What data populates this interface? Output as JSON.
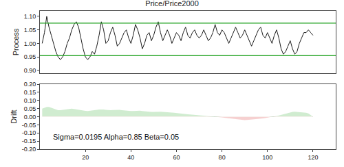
{
  "chart_data": [
    {
      "type": "line",
      "title": "Price/Price2000",
      "ylabel": "Process",
      "tick_labels": "y",
      "x": [
        1,
        2,
        3,
        4,
        5,
        6,
        7,
        8,
        9,
        10,
        11,
        12,
        13,
        14,
        15,
        16,
        17,
        18,
        19,
        20,
        21,
        22,
        23,
        24,
        25,
        26,
        27,
        28,
        29,
        30,
        31,
        32,
        33,
        34,
        35,
        36,
        37,
        38,
        39,
        40,
        41,
        42,
        43,
        44,
        45,
        46,
        47,
        48,
        49,
        50,
        51,
        52,
        53,
        54,
        55,
        56,
        57,
        58,
        59,
        60,
        61,
        62,
        63,
        64,
        65,
        66,
        67,
        68,
        69,
        70,
        71,
        72,
        73,
        74,
        75,
        76,
        77,
        78,
        79,
        80,
        81,
        82,
        83,
        84,
        85,
        86,
        87,
        88,
        89,
        90,
        91,
        92,
        93,
        94,
        95,
        96,
        97,
        98,
        99,
        100,
        101,
        102,
        103,
        104,
        105,
        106,
        107,
        108,
        109,
        110,
        111,
        112,
        113,
        114,
        115,
        116,
        117,
        118,
        119,
        120
      ],
      "xlim": [
        0,
        130
      ],
      "ylim": [
        0.89,
        1.12
      ],
      "yticks": [
        {
          "value": 0.9,
          "label": "0.90"
        },
        {
          "value": 0.95,
          "label": "0.95"
        },
        {
          "value": 1.0,
          "label": "1.00"
        },
        {
          "value": 1.05,
          "label": "1.05"
        },
        {
          "value": 1.1,
          "label": "1.10"
        }
      ],
      "series": [
        {
          "color": "#1a1a1a",
          "values": [
            1.0,
            1.04,
            1.1,
            1.06,
            1.03,
            1.0,
            0.97,
            0.95,
            0.94,
            0.95,
            0.97,
            1.0,
            1.02,
            1.05,
            1.07,
            1.08,
            1.06,
            1.02,
            0.98,
            0.95,
            0.94,
            0.95,
            0.97,
            0.96,
            0.99,
            1.03,
            1.08,
            1.05,
            1.0,
            1.01,
            1.04,
            1.06,
            1.03,
            0.99,
            1.0,
            1.02,
            1.04,
            1.05,
            1.02,
            1.0,
            1.03,
            1.07,
            1.05,
            1.02,
            0.98,
            1.0,
            1.03,
            1.04,
            1.01,
            1.03,
            1.06,
            1.08,
            1.04,
            1.01,
            1.03,
            1.05,
            1.03,
            1.0,
            1.02,
            1.04,
            1.03,
            1.01,
            1.04,
            1.06,
            1.03,
            1.02,
            1.04,
            1.05,
            1.03,
            1.02,
            1.03,
            1.05,
            1.03,
            1.01,
            1.02,
            1.04,
            1.07,
            1.04,
            1.03,
            1.05,
            1.04,
            1.02,
            1.0,
            1.02,
            1.04,
            1.06,
            1.04,
            1.02,
            1.03,
            1.05,
            1.03,
            1.01,
            0.99,
            1.01,
            1.03,
            1.05,
            1.06,
            1.03,
            1.02,
            1.04,
            1.02,
            1.0,
            1.03,
            1.05,
            1.02,
            0.98,
            0.96,
            0.97,
            0.99,
            1.01,
            0.98,
            0.96,
            0.97,
            1.0,
            1.02,
            1.04,
            1.04,
            1.05,
            1.04,
            1.03
          ]
        }
      ],
      "reference_lines": [
        {
          "value": 1.075,
          "color": "#33aa33"
        },
        {
          "value": 0.955,
          "color": "#33aa33"
        }
      ]
    },
    {
      "type": "area",
      "ylabel": "Drift",
      "annotation": "Sigma=0.0195 Alpha=0.85 Beta=0.05",
      "x": [
        1,
        2,
        3,
        4,
        5,
        6,
        7,
        8,
        9,
        10,
        11,
        12,
        13,
        14,
        15,
        16,
        17,
        18,
        19,
        20,
        21,
        22,
        23,
        24,
        25,
        26,
        27,
        28,
        29,
        30,
        31,
        32,
        33,
        34,
        35,
        36,
        37,
        38,
        39,
        40,
        41,
        42,
        43,
        44,
        45,
        46,
        47,
        48,
        49,
        50,
        51,
        52,
        53,
        54,
        55,
        56,
        57,
        58,
        59,
        60,
        61,
        62,
        63,
        64,
        65,
        66,
        67,
        68,
        69,
        70,
        71,
        72,
        73,
        74,
        75,
        76,
        77,
        78,
        79,
        80,
        81,
        82,
        83,
        84,
        85,
        86,
        87,
        88,
        89,
        90,
        91,
        92,
        93,
        94,
        95,
        96,
        97,
        98,
        99,
        100,
        101,
        102,
        103,
        104,
        105,
        106,
        107,
        108,
        109,
        110,
        111,
        112,
        113,
        114,
        115,
        116,
        117,
        118,
        119,
        120
      ],
      "xlim": [
        0,
        130
      ],
      "xticks": [
        20,
        40,
        60,
        80,
        100,
        120
      ],
      "ylim": [
        -0.2,
        0.2
      ],
      "yticks": [
        {
          "value": -0.2,
          "label": "-0.20"
        },
        {
          "value": -0.15,
          "label": "-0.15"
        },
        {
          "value": -0.1,
          "label": "-0.10"
        },
        {
          "value": -0.05,
          "label": "-0.05"
        },
        {
          "value": 0,
          "label": "0.00"
        },
        {
          "value": 0.05,
          "label": "0.05"
        },
        {
          "value": 0.1,
          "label": "0.10"
        },
        {
          "value": 0.15,
          "label": "0.15"
        },
        {
          "value": 0.2,
          "label": "0.20"
        }
      ],
      "series": [
        {
          "color": "#3c7a3c",
          "values": [
            0.05,
            0.055,
            0.06,
            0.06,
            0.055,
            0.05,
            0.045,
            0.04,
            0.04,
            0.042,
            0.045,
            0.048,
            0.05,
            0.05,
            0.048,
            0.045,
            0.042,
            0.04,
            0.038,
            0.036,
            0.035,
            0.036,
            0.038,
            0.04,
            0.042,
            0.044,
            0.045,
            0.044,
            0.042,
            0.04,
            0.04,
            0.041,
            0.042,
            0.043,
            0.042,
            0.04,
            0.038,
            0.037,
            0.036,
            0.035,
            0.035,
            0.036,
            0.038,
            0.037,
            0.035,
            0.033,
            0.032,
            0.031,
            0.03,
            0.03,
            0.031,
            0.032,
            0.031,
            0.03,
            0.028,
            0.027,
            0.026,
            0.025,
            0.024,
            0.022,
            0.02,
            0.019,
            0.018,
            0.017,
            0.015,
            0.014,
            0.012,
            0.01,
            0.009,
            0.008,
            0.007,
            0.006,
            0.005,
            0.004,
            0.003,
            0.002,
            0.001,
            0.0,
            -0.002,
            -0.004,
            -0.006,
            -0.008,
            -0.01,
            -0.012,
            -0.014,
            -0.015,
            -0.016,
            -0.018,
            -0.02,
            -0.021,
            -0.02,
            -0.019,
            -0.018,
            -0.016,
            -0.015,
            -0.014,
            -0.012,
            -0.01,
            -0.008,
            -0.006,
            -0.004,
            -0.002,
            0.0,
            0.004,
            0.008,
            0.012,
            0.016,
            0.02,
            0.024,
            0.027,
            0.03,
            0.031,
            0.03,
            0.028,
            0.026,
            0.025,
            0.024,
            0.02,
            0.01,
            0.0
          ]
        }
      ]
    }
  ]
}
